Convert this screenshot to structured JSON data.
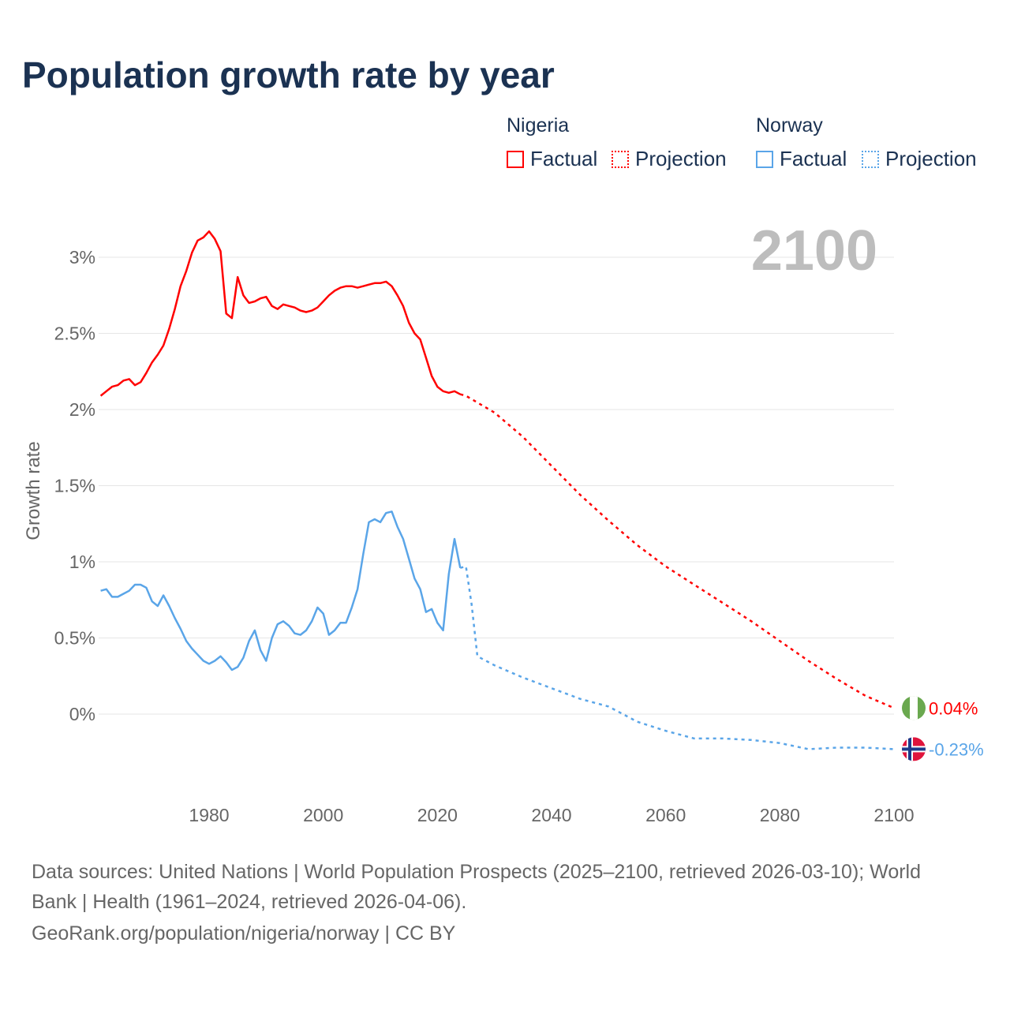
{
  "title": "Population growth rate by year",
  "legend": {
    "nigeria": {
      "name": "Nigeria",
      "factual": "Factual",
      "projection": "Projection"
    },
    "norway": {
      "name": "Norway",
      "factual": "Factual",
      "projection": "Projection"
    }
  },
  "colors": {
    "nigeria": "#ff0000",
    "norway": "#5aa5e8",
    "title": "#1b3252"
  },
  "year_label": "2100",
  "footer": {
    "line1": "Data sources: United Nations | World Population Prospects (2025–2100, retrieved 2026-03-10); World",
    "line2": "Bank | Health (1961–2024, retrieved 2026-04-06).",
    "line3": "GeoRank.org/population/nigeria/norway | CC BY"
  },
  "chart_data": {
    "type": "line",
    "title": "Population growth rate by year",
    "xlabel": "",
    "ylabel": "Growth rate",
    "xlim": [
      1961,
      2100
    ],
    "ylim": [
      -0.5,
      3.3
    ],
    "xticks": [
      1980,
      2000,
      2020,
      2040,
      2060,
      2080,
      2100
    ],
    "xtick_labels": [
      "1980",
      "2000",
      "2020",
      "2040",
      "2060",
      "2080",
      "2100"
    ],
    "yticks": [
      0,
      0.5,
      1,
      1.5,
      2,
      2.5,
      3
    ],
    "ytick_labels": [
      "0%",
      "0.5%",
      "1%",
      "1.5%",
      "2%",
      "2.5%",
      "3%"
    ],
    "grid": true,
    "legend_position": "top-right",
    "series": [
      {
        "name": "Nigeria",
        "kind": "Factual",
        "x_start": 1961,
        "values": [
          2.09,
          2.12,
          2.15,
          2.16,
          2.19,
          2.2,
          2.16,
          2.18,
          2.24,
          2.31,
          2.36,
          2.42,
          2.53,
          2.66,
          2.81,
          2.91,
          3.03,
          3.11,
          3.13,
          3.17,
          3.12,
          3.04,
          2.63,
          2.6,
          2.87,
          2.75,
          2.7,
          2.71,
          2.73,
          2.74,
          2.68,
          2.66,
          2.69,
          2.68,
          2.67,
          2.65,
          2.64,
          2.65,
          2.67,
          2.71,
          2.75,
          2.78,
          2.8,
          2.81,
          2.81,
          2.8,
          2.81,
          2.82,
          2.83,
          2.83,
          2.84,
          2.81,
          2.75,
          2.68,
          2.57,
          2.5,
          2.46,
          2.34,
          2.22,
          2.15,
          2.12,
          2.11,
          2.12,
          2.1
        ]
      },
      {
        "name": "Nigeria",
        "kind": "Projection",
        "x": [
          2024,
          2025,
          2030,
          2035,
          2040,
          2045,
          2050,
          2055,
          2060,
          2065,
          2070,
          2075,
          2080,
          2085,
          2090,
          2095,
          2100
        ],
        "values": [
          2.1,
          2.09,
          1.98,
          1.82,
          1.63,
          1.44,
          1.27,
          1.11,
          0.97,
          0.85,
          0.73,
          0.61,
          0.48,
          0.35,
          0.23,
          0.12,
          0.04
        ]
      },
      {
        "name": "Norway",
        "kind": "Factual",
        "x_start": 1961,
        "values": [
          0.81,
          0.82,
          0.77,
          0.77,
          0.79,
          0.81,
          0.85,
          0.85,
          0.83,
          0.74,
          0.71,
          0.78,
          0.71,
          0.63,
          0.56,
          0.48,
          0.43,
          0.39,
          0.35,
          0.33,
          0.35,
          0.38,
          0.34,
          0.29,
          0.31,
          0.37,
          0.48,
          0.55,
          0.42,
          0.35,
          0.5,
          0.59,
          0.61,
          0.58,
          0.53,
          0.52,
          0.55,
          0.61,
          0.7,
          0.66,
          0.52,
          0.55,
          0.6,
          0.6,
          0.7,
          0.82,
          1.05,
          1.26,
          1.28,
          1.26,
          1.32,
          1.33,
          1.23,
          1.15,
          1.02,
          0.89,
          0.82,
          0.67,
          0.69,
          0.6,
          0.55,
          0.92,
          1.15,
          0.96
        ]
      },
      {
        "name": "Norway",
        "kind": "Projection",
        "x": [
          2024,
          2025,
          2026,
          2027,
          2030,
          2035,
          2040,
          2045,
          2050,
          2055,
          2060,
          2065,
          2070,
          2075,
          2080,
          2085,
          2090,
          2095,
          2100
        ],
        "values": [
          0.96,
          0.97,
          0.72,
          0.38,
          0.32,
          0.24,
          0.17,
          0.1,
          0.05,
          -0.05,
          -0.11,
          -0.16,
          -0.16,
          -0.17,
          -0.19,
          -0.23,
          -0.22,
          -0.22,
          -0.23
        ]
      }
    ],
    "end_labels": {
      "nigeria": "0.04%",
      "norway": "-0.23%"
    }
  }
}
